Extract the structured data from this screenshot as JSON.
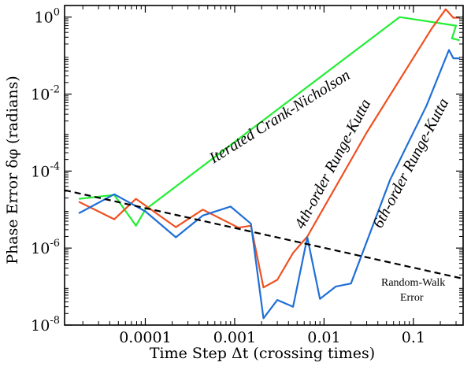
{
  "chart_data": {
    "type": "line",
    "xlabel": "Time Step Δt (crossing times)",
    "ylabel": "Phase Error δφ (radians)",
    "x_scale": "log",
    "y_scale": "log",
    "xlim": [
      1.25e-05,
      0.36
    ],
    "ylim": [
      1e-08,
      2
    ],
    "x_ticks": [
      0.0001,
      0.001,
      0.01,
      0.1
    ],
    "x_tick_labels": [
      "0.0001",
      "0.001",
      "0.01",
      "0.1"
    ],
    "y_ticks": [
      1e-08,
      1e-06,
      0.0001,
      0.01,
      1
    ],
    "y_tick_labels": [
      {
        "base": "10",
        "exp": "-8"
      },
      {
        "base": "10",
        "exp": "-6"
      },
      {
        "base": "10",
        "exp": "-4"
      },
      {
        "base": "10",
        "exp": "-2"
      },
      {
        "base": "10",
        "exp": "0"
      }
    ],
    "grid": false,
    "series": [
      {
        "name": "Iterated Crank-Nicholson",
        "color": "#22ee33",
        "style": "solid",
        "points": [
          [
            1.8e-05,
            1.9e-05
          ],
          [
            4.5e-05,
            2.4e-05
          ],
          [
            7.86e-05,
            3.8e-06
          ],
          [
            0.0001,
            1e-05
          ],
          [
            0.07,
            1.0
          ],
          [
            0.3,
            0.6
          ],
          [
            0.27,
            0.28
          ],
          [
            0.33,
            0.25
          ]
        ]
      },
      {
        "name": "4th-order Runge-Kutta",
        "color": "#f05020",
        "style": "solid",
        "points": [
          [
            1.8e-05,
            1.6e-05
          ],
          [
            4.5e-05,
            5.6e-06
          ],
          [
            7.86e-05,
            1.9e-05
          ],
          [
            0.00022,
            3.5e-06
          ],
          [
            0.00044,
            1e-05
          ],
          [
            0.0011,
            3.4e-06
          ],
          [
            0.00152,
            3.8e-06
          ],
          [
            0.0021,
            9.5e-08
          ],
          [
            0.003,
            1.5e-07
          ],
          [
            0.0045,
            7.5e-07
          ],
          [
            0.0065,
            2e-06
          ],
          [
            0.03,
            0.001
          ],
          [
            0.16,
            0.5
          ],
          [
            0.23,
            1.6
          ],
          [
            0.28,
            0.96
          ],
          [
            0.33,
            0.97
          ]
        ]
      },
      {
        "name": "6th-order Runge-Kutta",
        "color": "#1f6fd6",
        "style": "solid",
        "points": [
          [
            1.8e-05,
            8e-06
          ],
          [
            4.5e-05,
            2.5e-05
          ],
          [
            0.0001,
            9e-06
          ],
          [
            0.00022,
            1.9e-06
          ],
          [
            0.00044,
            7e-06
          ],
          [
            0.0009,
            1.2e-05
          ],
          [
            0.00152,
            4.3e-06
          ],
          [
            0.0021,
            1.5e-08
          ],
          [
            0.003,
            4.5e-08
          ],
          [
            0.0045,
            3e-08
          ],
          [
            0.0065,
            1.9e-06
          ],
          [
            0.009,
            4.8e-08
          ],
          [
            0.0135,
            1e-07
          ],
          [
            0.02,
            1.2e-07
          ],
          [
            0.055,
            6e-05
          ],
          [
            0.14,
            0.005
          ],
          [
            0.25,
            0.14
          ],
          [
            0.28,
            0.085
          ],
          [
            0.33,
            0.085
          ]
        ]
      },
      {
        "name": "Random-Walk Error",
        "color": "#000000",
        "style": "dashed",
        "points": [
          [
            1.25e-05,
            3.2e-05
          ],
          [
            0.36,
            1.6e-07
          ]
        ]
      }
    ],
    "annotations": {
      "icn_label": "Iterated Crank-Nicholson",
      "rk4_label": "4th-order Runge-Kutta",
      "rk6_label": "6th-order Runge-Kutta",
      "rw_line1": "Random-Walk",
      "rw_line2": "Error"
    }
  }
}
